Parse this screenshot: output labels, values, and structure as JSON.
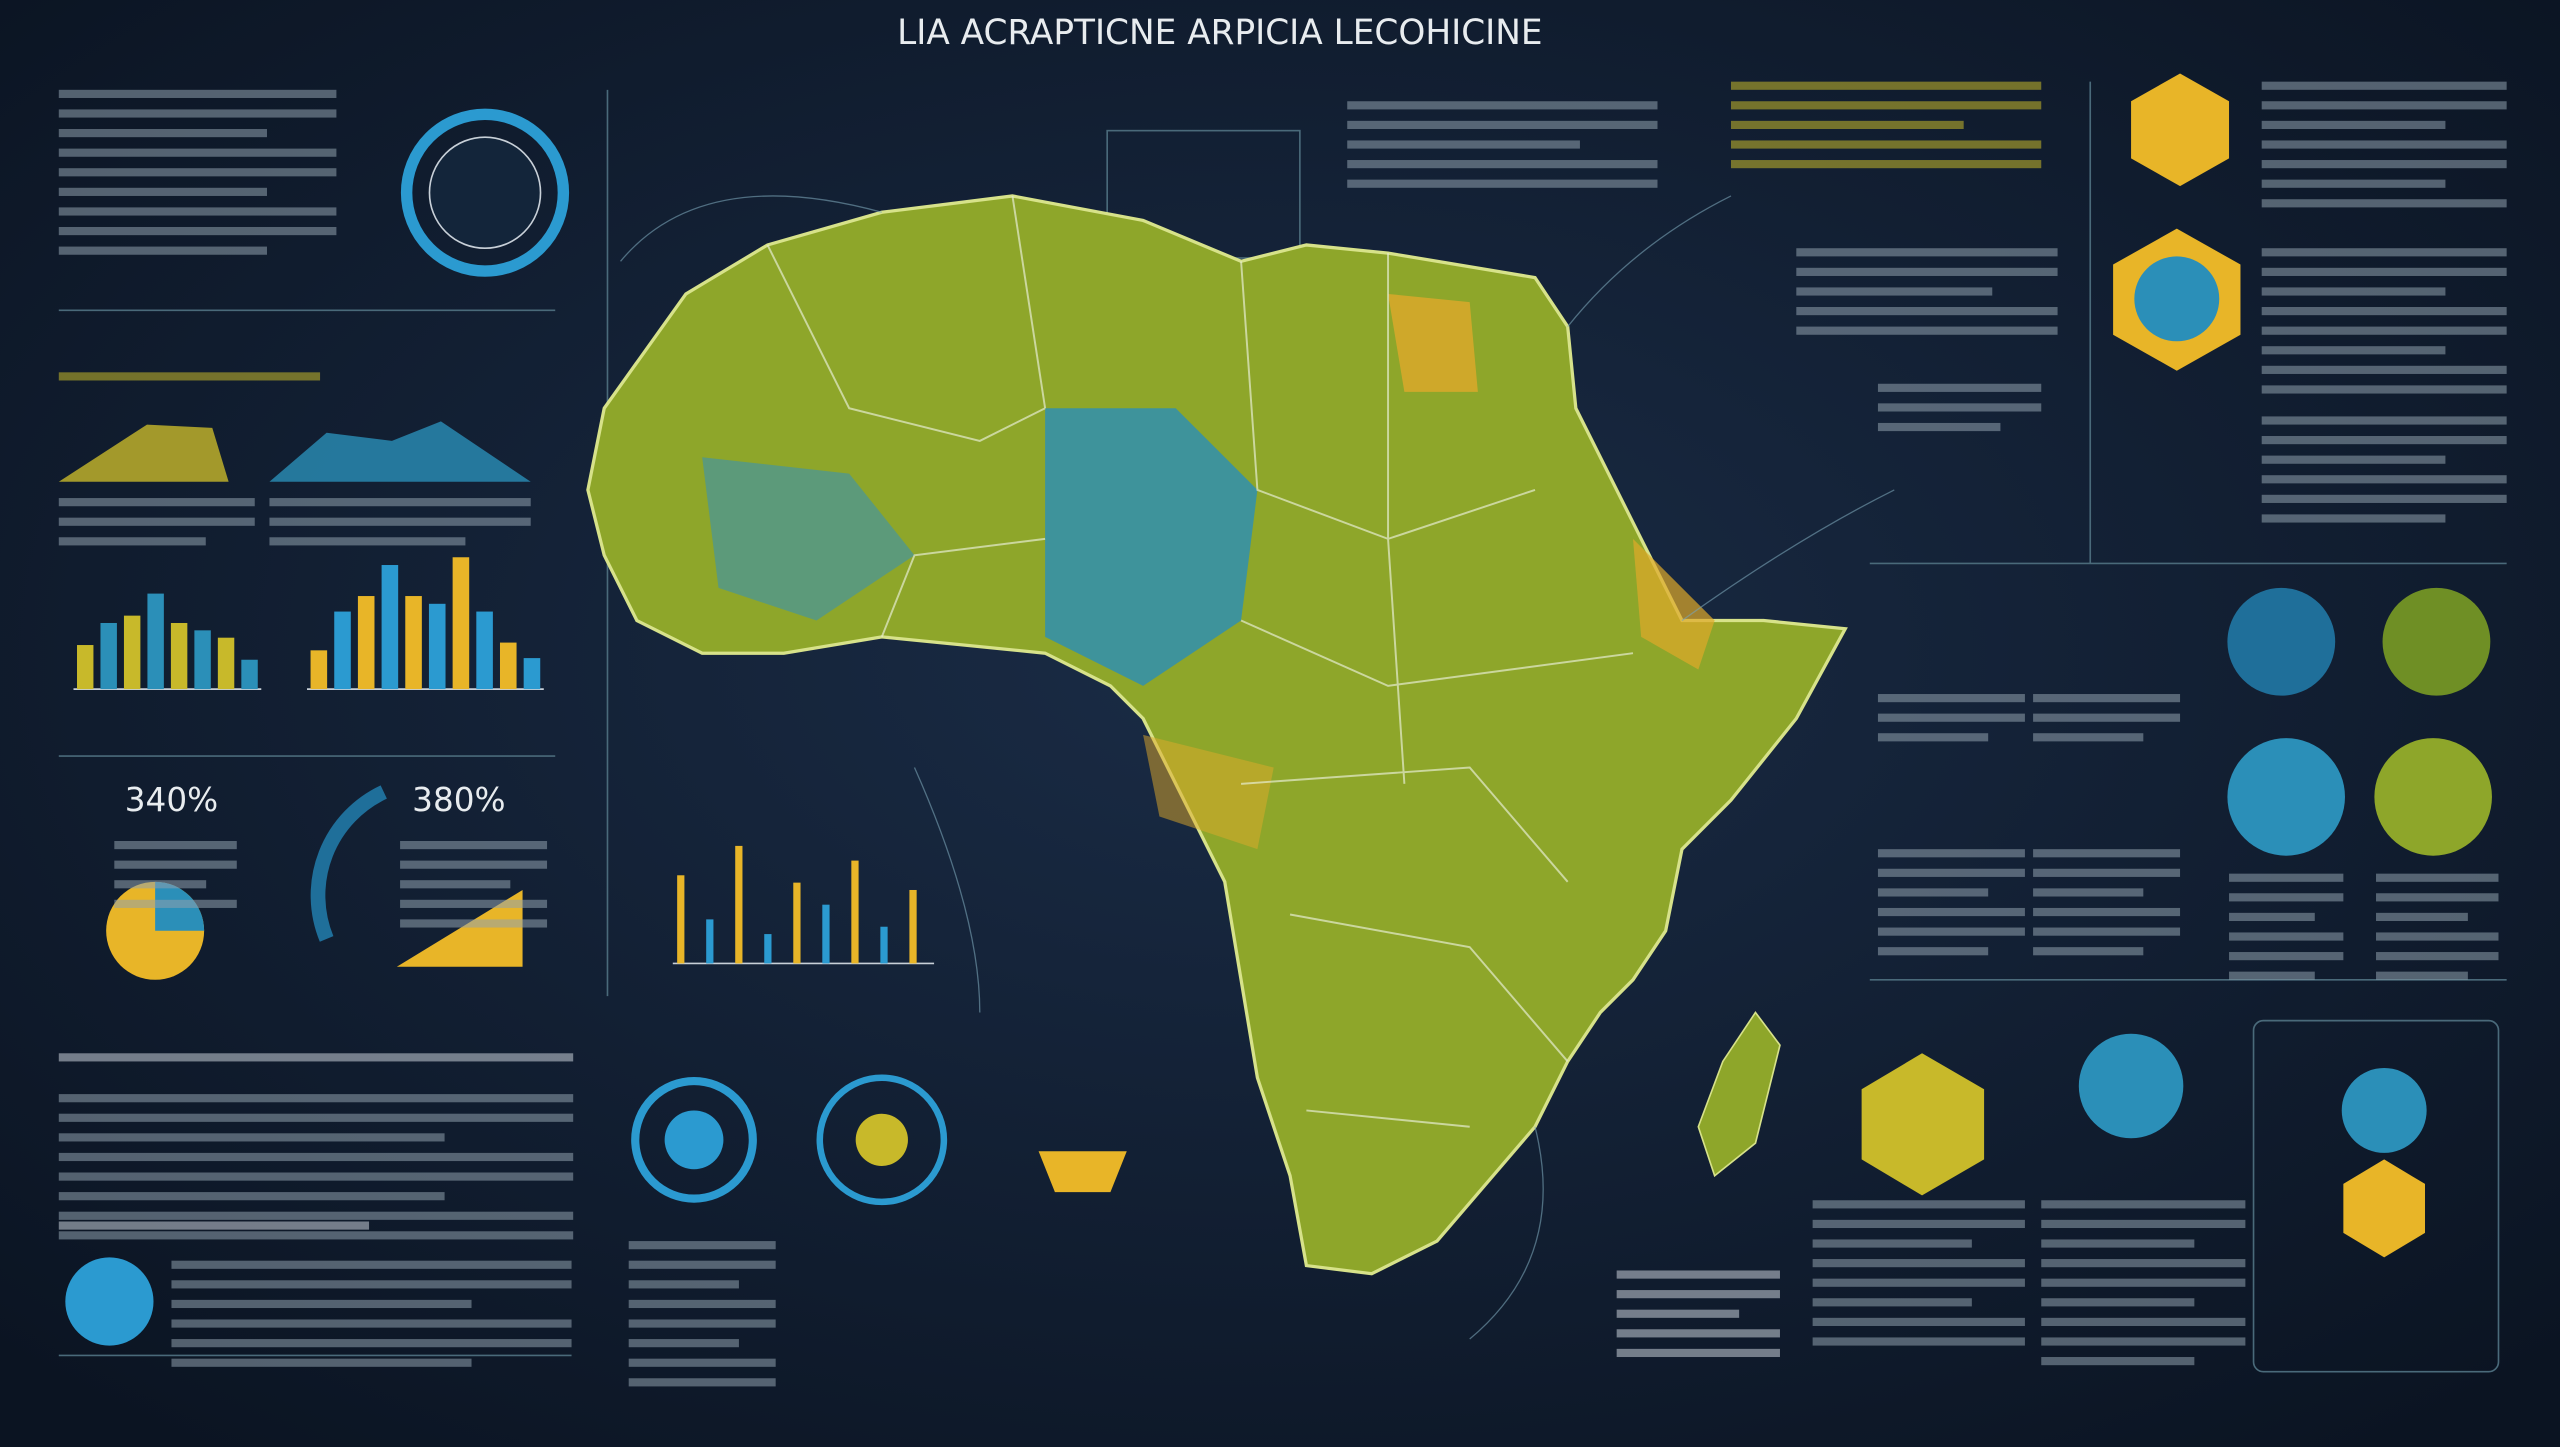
{
  "header": {
    "title": "LIA ACRAPTICNE ARPICIA LECOHICINE"
  },
  "stats": [
    "340%",
    "380%"
  ],
  "mini_charts": [
    {
      "type": "bar",
      "values": [
        30,
        45,
        50,
        65,
        45,
        40,
        35,
        20
      ],
      "colors": [
        "#c8b92a",
        "#2b8fb8"
      ]
    },
    {
      "type": "bar",
      "values": [
        25,
        50,
        60,
        80,
        60,
        55,
        85,
        50,
        30,
        20
      ],
      "colors": [
        "#e8b528",
        "#2b9ad0"
      ]
    },
    {
      "type": "bar",
      "values": [
        60,
        30,
        80,
        20,
        55,
        40,
        70,
        25,
        50
      ],
      "colors": [
        "#e8b528",
        "#2b9ad0"
      ]
    }
  ]
}
